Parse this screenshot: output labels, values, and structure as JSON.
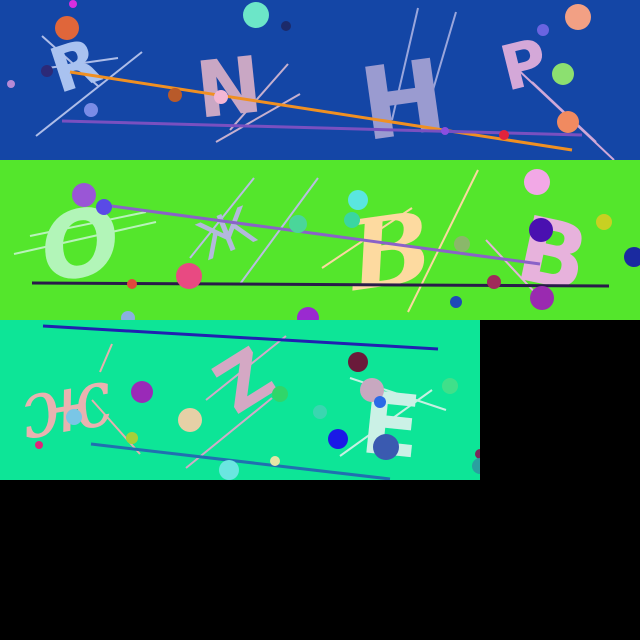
{
  "background": "#000000",
  "strips": [
    {
      "name": "strip-1",
      "letters": [
        "R",
        "N",
        "H",
        "P"
      ],
      "colors": {
        "bg": "#1446a6",
        "letter_r": "#a9c2f0",
        "letter_n": "#c9a7c4",
        "letter_h": "#9a9bd0",
        "letter_p": "#d4a8d8"
      }
    },
    {
      "name": "strip-2",
      "letters": [
        "O",
        "Ж",
        "B",
        "B"
      ],
      "colors": {
        "bg": "#54e62c",
        "letter_o": "#b2f5b8",
        "letter_zhe": "#b3b8dc",
        "letter_b1": "#fddaa0",
        "letter_b2": "#e7b2dc"
      }
    },
    {
      "name": "strip-3",
      "letters": [
        "ж",
        "Z",
        "E"
      ],
      "colors": {
        "bg": "#0de597",
        "letter_zh": "#e9b2b0",
        "letter_z": "#d4a8c4",
        "letter_e": "#cbf1e6"
      }
    }
  ]
}
